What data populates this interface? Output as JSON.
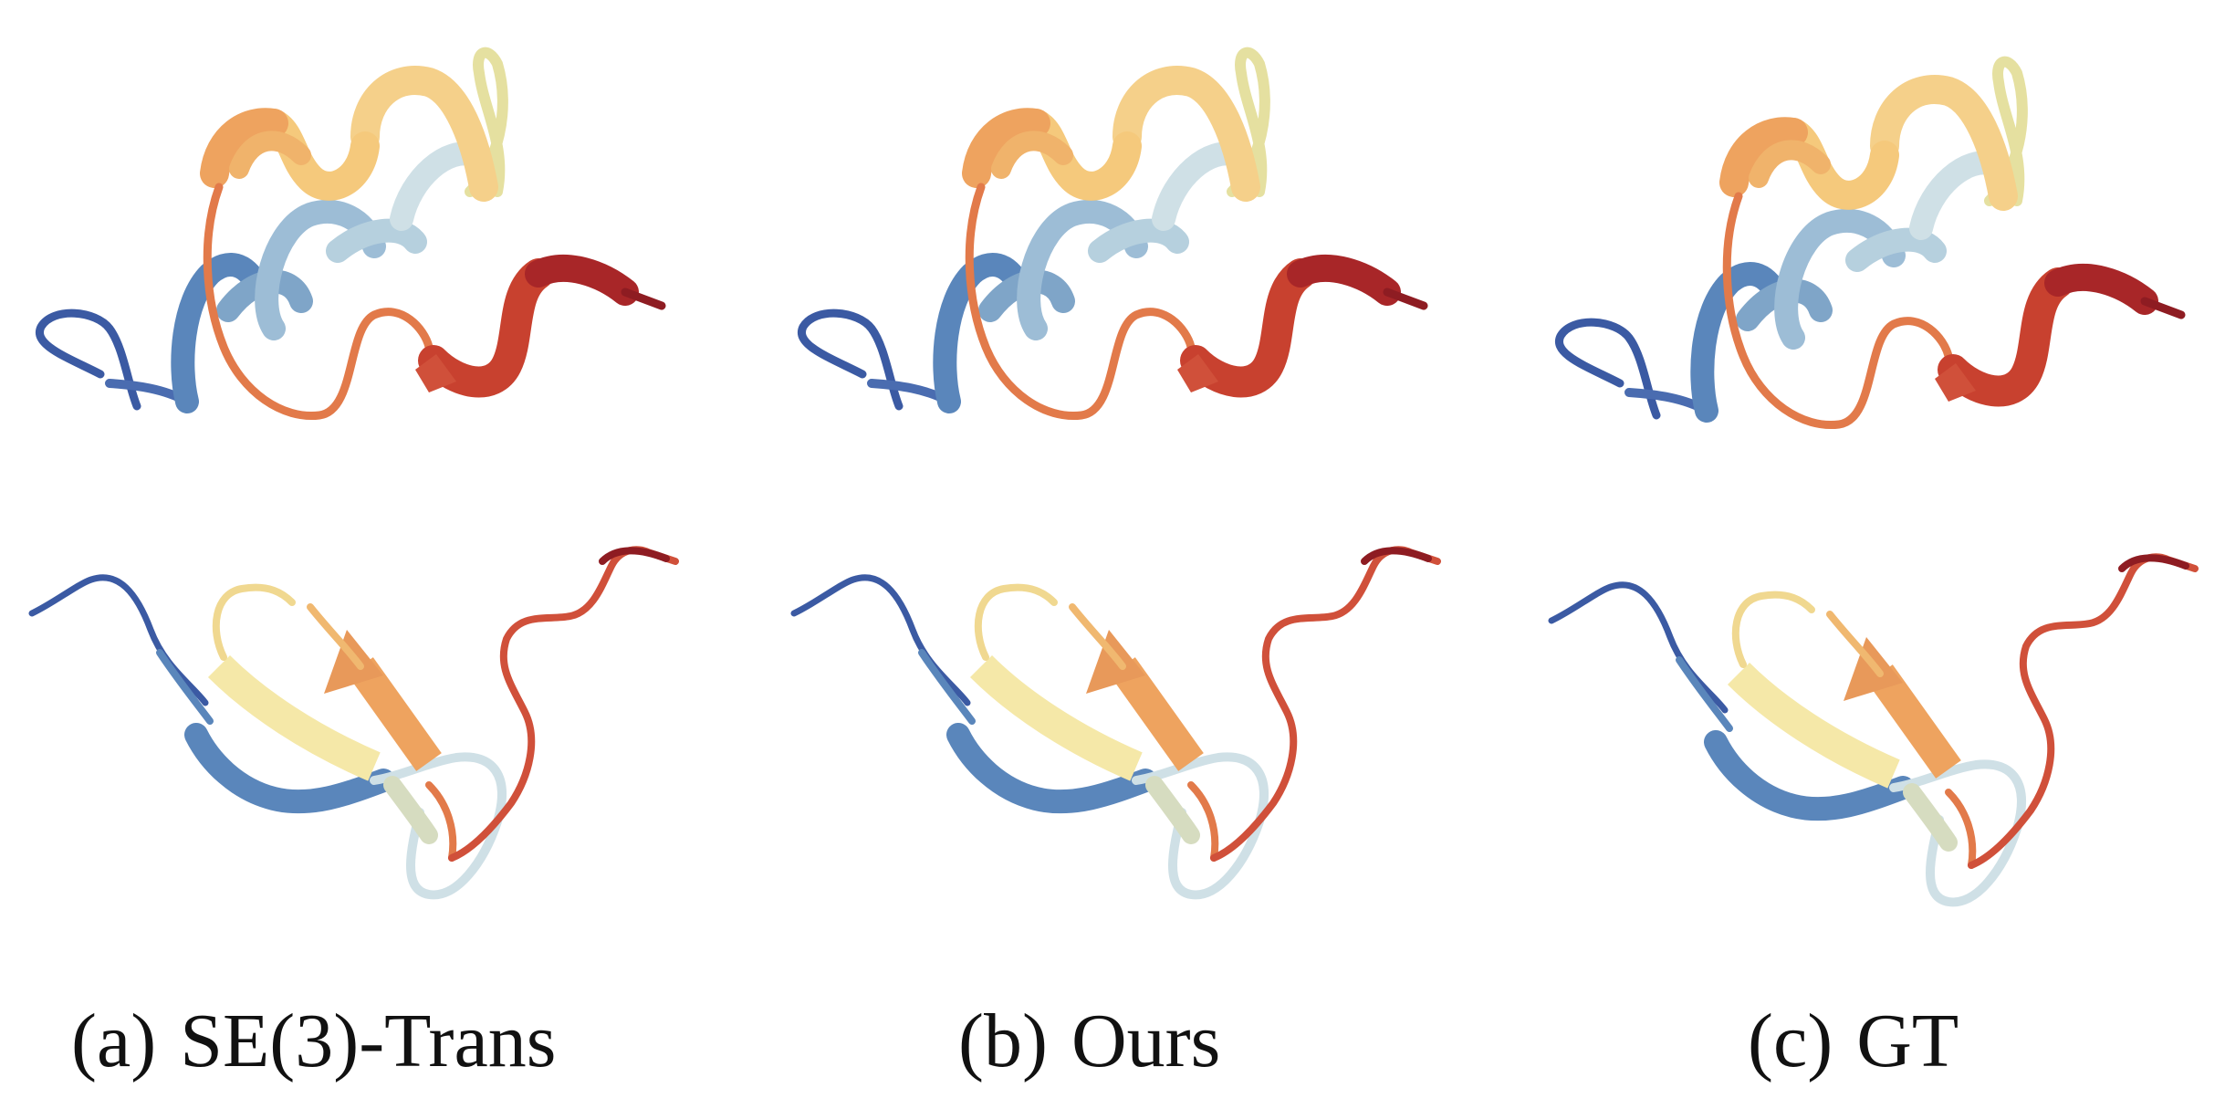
{
  "captions": {
    "a": {
      "tag": "(a)",
      "name": "SE(3)-Trans"
    },
    "b": {
      "tag": "(b)",
      "name": "Ours"
    },
    "c": {
      "tag": "(c)",
      "name": "GT"
    }
  },
  "colors": {
    "ramp": [
      "#3b5aa3",
      "#5a86bb",
      "#9dbdd6",
      "#cfe0e6",
      "#eee6a8",
      "#f5c97c",
      "#eea35f",
      "#e27a4a",
      "#d0503a",
      "#b22a2a",
      "#8e1c22"
    ]
  }
}
